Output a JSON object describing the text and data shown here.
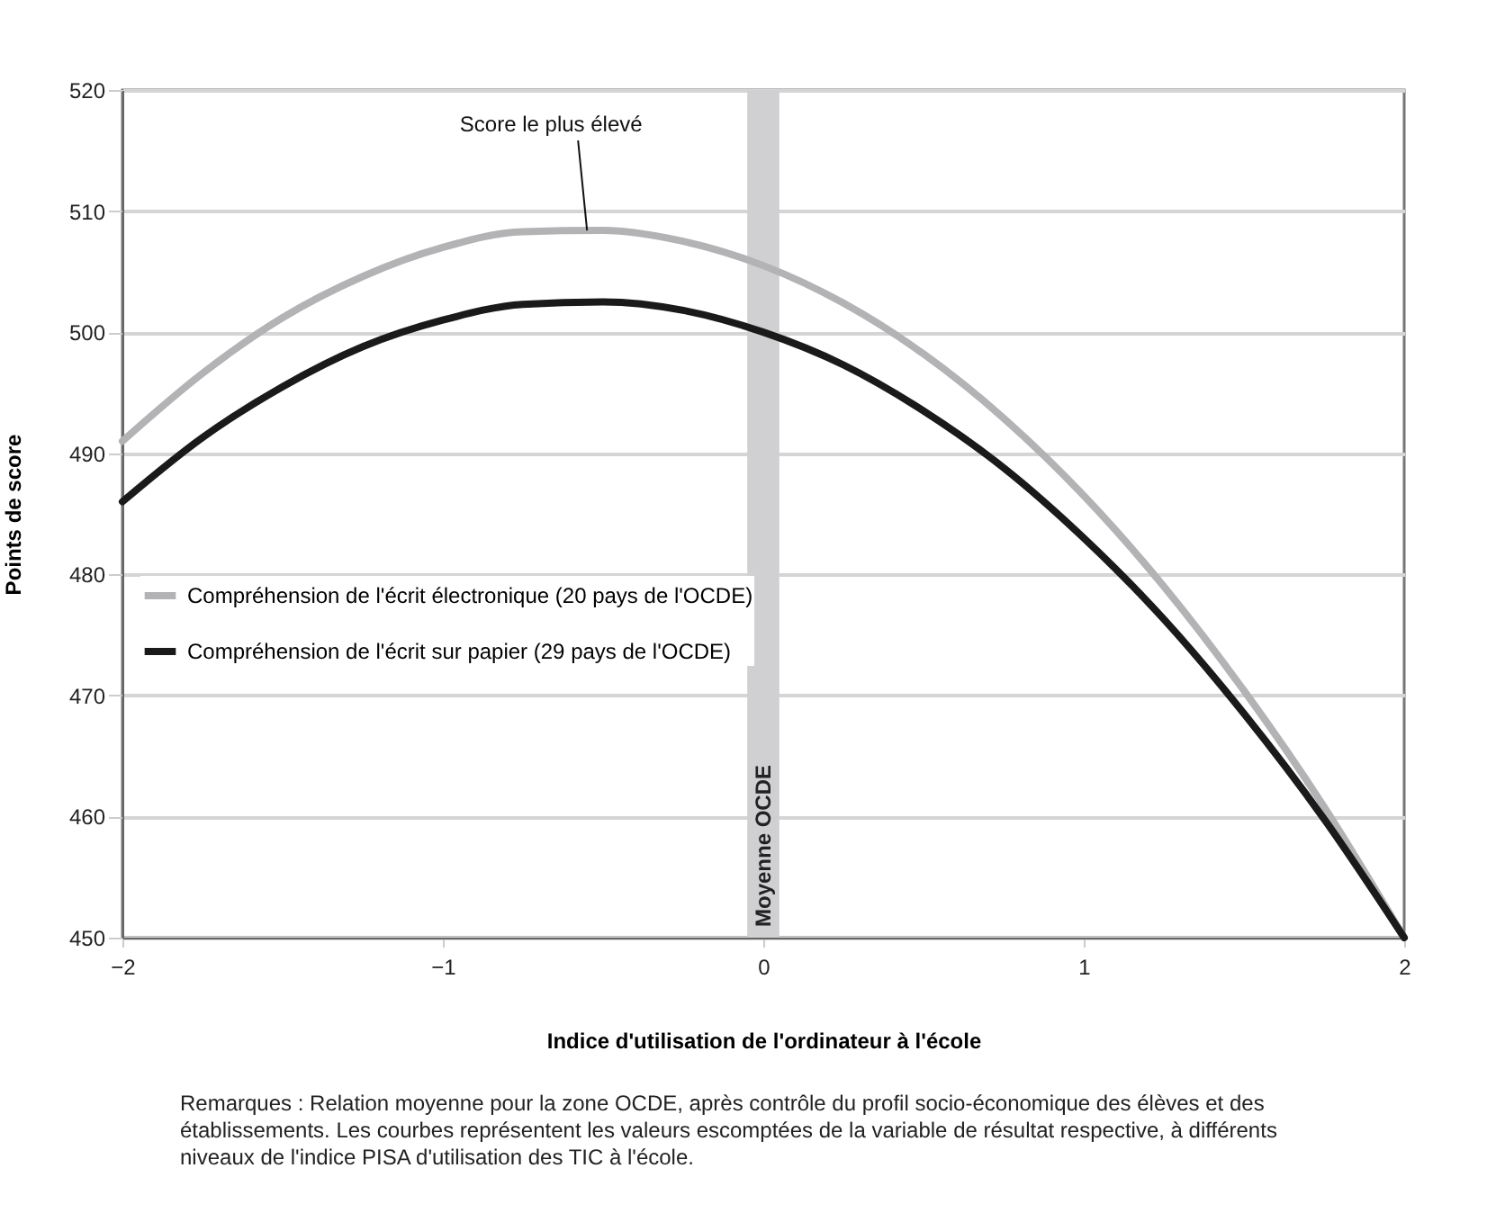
{
  "chart_data": {
    "type": "line",
    "xlabel": "Indice d'utilisation de l'ordinateur à l'école",
    "ylabel": "Points de score",
    "x": [
      -2,
      -1.75,
      -1.5,
      -1.25,
      -1,
      -0.75,
      -0.5,
      -0.25,
      0,
      0.25,
      0.5,
      0.75,
      1,
      1.25,
      1.5,
      1.75,
      2
    ],
    "series": [
      {
        "name": "Compréhension de l'écrit électronique (20 pays de l'OCDE)",
        "color": "#b3b3b5",
        "values": [
          491.0,
          496.6,
          501.2,
          504.6,
          507.0,
          508.3,
          508.4,
          507.5,
          505.5,
          502.4,
          498.2,
          492.9,
          486.5,
          479.0,
          470.4,
          460.8,
          450.0
        ]
      },
      {
        "name": "Compréhension de l'écrit sur papier (29 pays de l'OCDE)",
        "color": "#1a1a1a",
        "values": [
          486.0,
          491.3,
          495.5,
          498.8,
          501.0,
          502.3,
          502.5,
          501.8,
          500.0,
          497.3,
          493.5,
          488.8,
          483.0,
          476.3,
          468.5,
          459.8,
          450.0
        ]
      }
    ],
    "xlim": [
      -2,
      2
    ],
    "xticks": [
      {
        "value": -2,
        "label": "−2"
      },
      {
        "value": -1,
        "label": "−1"
      },
      0,
      1,
      2
    ],
    "ylim": [
      450,
      520
    ],
    "yticks": [
      450,
      460,
      470,
      480,
      490,
      500,
      510,
      520
    ],
    "bands": [
      {
        "axis": "x",
        "from": -0.05,
        "to": 0.05,
        "label": "Moyenne OCDE",
        "color": "#d0d0d2"
      }
    ],
    "annotations": [
      {
        "text": "Score le plus élevé",
        "x": -0.55,
        "y": 508.4
      },
      "Remarques : Relation moyenne pour la zone OCDE, après contrôle du profil socio-économique des élèves et des établissements. Les courbes représentent les valeurs escomptées de la variable de résultat respective, à différents niveaux de l'indice PISA d'utilisation des TIC à l'école."
    ],
    "grid": "y",
    "legend": "left",
    "line_style": "solid",
    "marker": "none"
  }
}
